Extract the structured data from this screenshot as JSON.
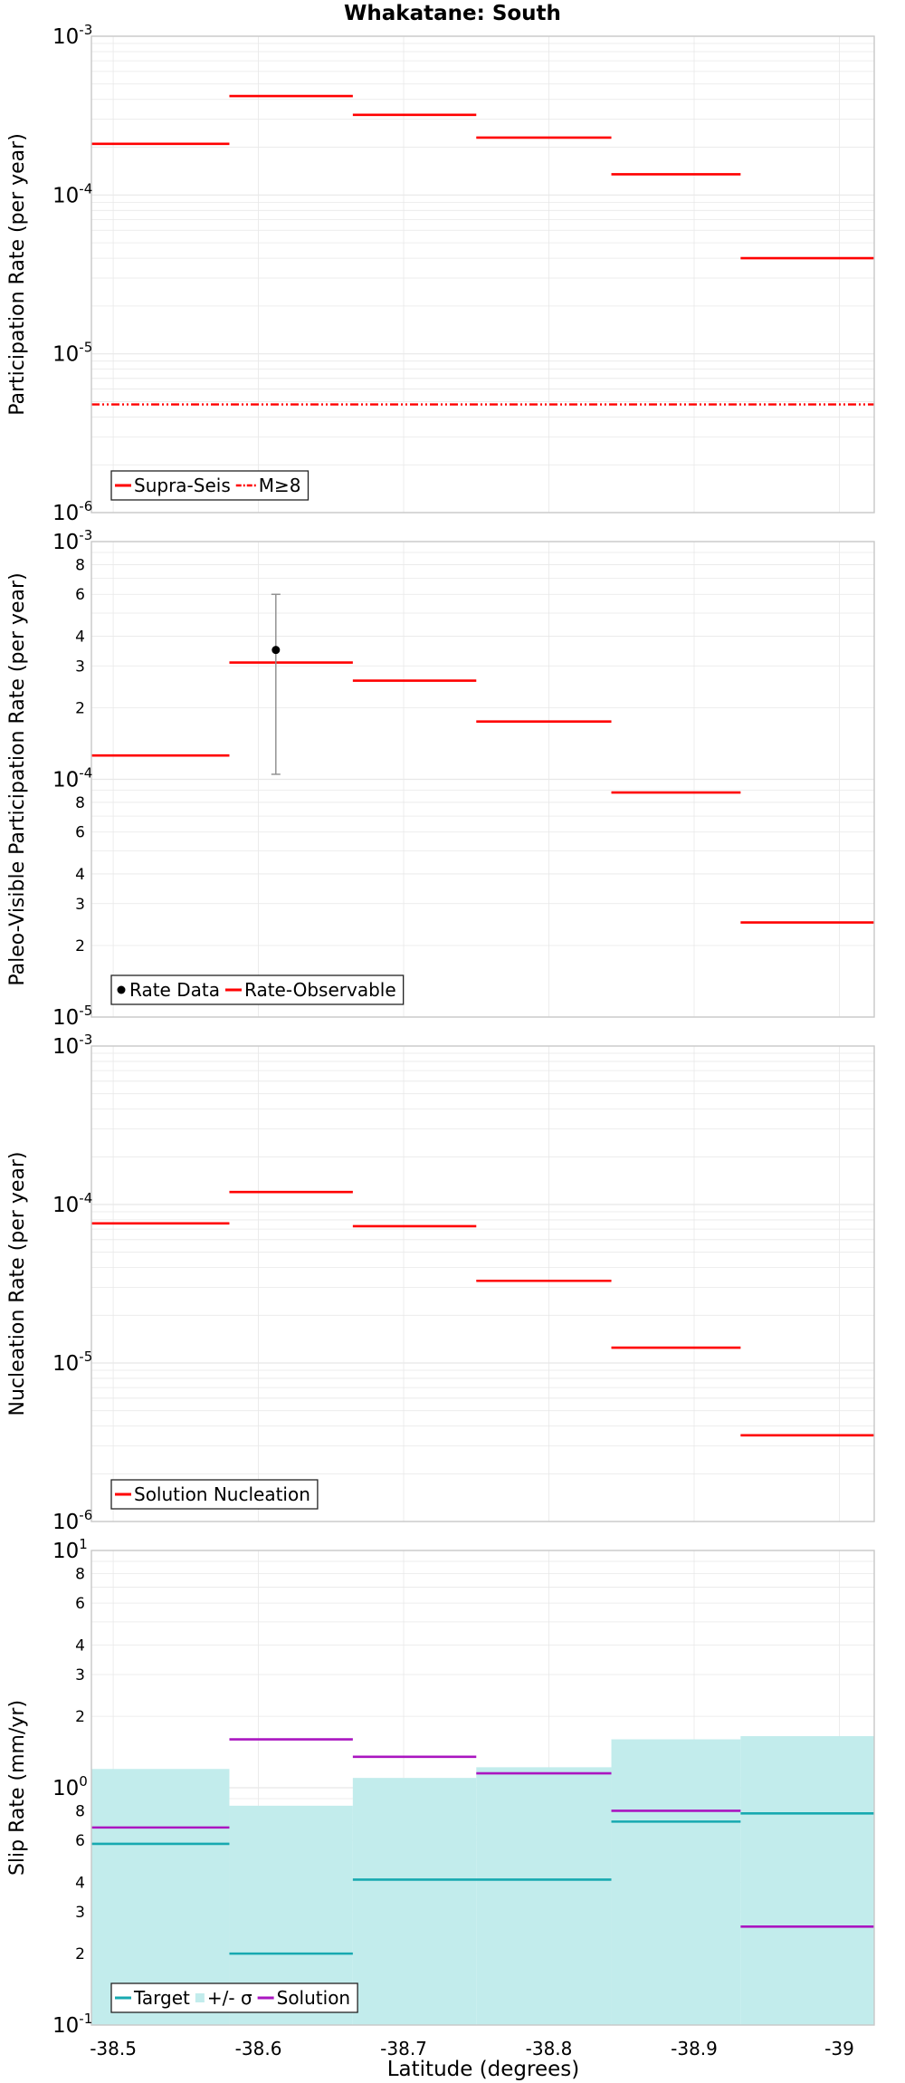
{
  "title": "Whakatane: South",
  "xlabel": "Latitude (degrees)",
  "colors": {
    "red": "#ff0000",
    "black": "#000000",
    "teal": "#17a9b0",
    "teal_band": "#c2ecec",
    "purple": "#aa16c0",
    "errorbar": "#8c8c8c",
    "grid": "#e8e8e8",
    "frame": "#c8c8c8"
  },
  "chart_data": [
    {
      "type": "line",
      "title": "Whakatane: South",
      "ylabel": "Participation Rate (per year)",
      "xlabel": "",
      "yscale": "log",
      "xlim": [
        -38.485,
        -39.024
      ],
      "ylim": [
        1e-06,
        0.001
      ],
      "yticks": [
        {
          "value": 1e-06,
          "base": "10",
          "exp": "-6"
        },
        {
          "value": 1e-05,
          "base": "10",
          "exp": "-5"
        },
        {
          "value": 0.0001,
          "base": "10",
          "exp": "-4"
        },
        {
          "value": 0.001,
          "base": "10",
          "exp": "-3"
        }
      ],
      "grid": true,
      "legend": "bottom-left",
      "legend_entries": [
        {
          "label": "Supra-Seis",
          "style": "line",
          "color": "#ff0000"
        },
        {
          "label": "M≥8",
          "style": "dashdot",
          "color": "#ff0000"
        }
      ],
      "series": [
        {
          "name": "Supra-Seis",
          "style": "step",
          "color": "#ff0000",
          "segments": [
            {
              "x0": -38.485,
              "x1": -38.58,
              "y": 0.00021
            },
            {
              "x0": -38.58,
              "x1": -38.665,
              "y": 0.00042
            },
            {
              "x0": -38.665,
              "x1": -38.75,
              "y": 0.00032
            },
            {
              "x0": -38.75,
              "x1": -38.843,
              "y": 0.00023
            },
            {
              "x0": -38.843,
              "x1": -38.932,
              "y": 0.000135
            },
            {
              "x0": -38.932,
              "x1": -39.024,
              "y": 4e-05
            }
          ]
        },
        {
          "name": "M≥8",
          "style": "dashdot",
          "color": "#ff0000",
          "segments": [
            {
              "x0": -38.485,
              "x1": -39.024,
              "y": 4.8e-06
            }
          ]
        }
      ]
    },
    {
      "type": "line",
      "title": "",
      "ylabel": "Paleo-Visible Participation Rate (per year)",
      "xlabel": "",
      "yscale": "log",
      "xlim": [
        -38.485,
        -39.024
      ],
      "ylim": [
        1e-05,
        0.001
      ],
      "yticks": [
        {
          "value": 1e-05,
          "base": "10",
          "exp": "-5"
        },
        {
          "value": 2e-05,
          "base": "2",
          "exp": ""
        },
        {
          "value": 3e-05,
          "base": "3",
          "exp": ""
        },
        {
          "value": 4e-05,
          "base": "4",
          "exp": ""
        },
        {
          "value": 6e-05,
          "base": "6",
          "exp": ""
        },
        {
          "value": 8e-05,
          "base": "8",
          "exp": ""
        },
        {
          "value": 0.0001,
          "base": "10",
          "exp": "-4"
        },
        {
          "value": 0.0002,
          "base": "2",
          "exp": ""
        },
        {
          "value": 0.0003,
          "base": "3",
          "exp": ""
        },
        {
          "value": 0.0004,
          "base": "4",
          "exp": ""
        },
        {
          "value": 0.0006,
          "base": "6",
          "exp": ""
        },
        {
          "value": 0.0008,
          "base": "8",
          "exp": ""
        },
        {
          "value": 0.001,
          "base": "10",
          "exp": "-3"
        }
      ],
      "grid": true,
      "legend": "bottom-left",
      "legend_entries": [
        {
          "label": "Rate Data",
          "style": "point",
          "color": "#000000"
        },
        {
          "label": "Rate-Observable",
          "style": "line",
          "color": "#ff0000"
        }
      ],
      "series": [
        {
          "name": "Rate-Observable",
          "style": "step",
          "color": "#ff0000",
          "segments": [
            {
              "x0": -38.485,
              "x1": -38.58,
              "y": 0.000126
            },
            {
              "x0": -38.58,
              "x1": -38.665,
              "y": 0.00031
            },
            {
              "x0": -38.665,
              "x1": -38.75,
              "y": 0.00026
            },
            {
              "x0": -38.75,
              "x1": -38.843,
              "y": 0.000175
            },
            {
              "x0": -38.843,
              "x1": -38.932,
              "y": 8.8e-05
            },
            {
              "x0": -38.932,
              "x1": -39.024,
              "y": 2.5e-05
            }
          ]
        },
        {
          "name": "Rate Data",
          "style": "points",
          "color": "#000000",
          "points": [
            {
              "x": -38.612,
              "y": 0.00035,
              "ylow": 0.000105,
              "yhigh": 0.0006
            }
          ]
        }
      ]
    },
    {
      "type": "line",
      "title": "",
      "ylabel": "Nucleation Rate (per year)",
      "xlabel": "",
      "yscale": "log",
      "xlim": [
        -38.485,
        -39.024
      ],
      "ylim": [
        1e-06,
        0.001
      ],
      "yticks": [
        {
          "value": 1e-06,
          "base": "10",
          "exp": "-6"
        },
        {
          "value": 1e-05,
          "base": "10",
          "exp": "-5"
        },
        {
          "value": 0.0001,
          "base": "10",
          "exp": "-4"
        },
        {
          "value": 0.001,
          "base": "10",
          "exp": "-3"
        }
      ],
      "grid": true,
      "legend": "bottom-left",
      "legend_entries": [
        {
          "label": "Solution Nucleation",
          "style": "line",
          "color": "#ff0000"
        }
      ],
      "series": [
        {
          "name": "Solution Nucleation",
          "style": "step",
          "color": "#ff0000",
          "segments": [
            {
              "x0": -38.485,
              "x1": -38.58,
              "y": 7.6e-05
            },
            {
              "x0": -38.58,
              "x1": -38.665,
              "y": 0.00012
            },
            {
              "x0": -38.665,
              "x1": -38.75,
              "y": 7.3e-05
            },
            {
              "x0": -38.75,
              "x1": -38.843,
              "y": 3.3e-05
            },
            {
              "x0": -38.843,
              "x1": -38.932,
              "y": 1.25e-05
            },
            {
              "x0": -38.932,
              "x1": -39.024,
              "y": 3.5e-06
            }
          ]
        }
      ]
    },
    {
      "type": "area",
      "title": "",
      "ylabel": "Slip Rate (mm/yr)",
      "xlabel": "Latitude (degrees)",
      "yscale": "log",
      "xlim": [
        -38.485,
        -39.024
      ],
      "ylim": [
        0.1,
        10
      ],
      "xticks": [
        {
          "value": -38.5,
          "label": "-38.5"
        },
        {
          "value": -38.6,
          "label": "-38.6"
        },
        {
          "value": -38.7,
          "label": "-38.7"
        },
        {
          "value": -38.8,
          "label": "-38.8"
        },
        {
          "value": -38.9,
          "label": "-38.9"
        },
        {
          "value": -39.0,
          "label": "-39"
        }
      ],
      "yticks": [
        {
          "value": 0.1,
          "base": "10",
          "exp": "-1"
        },
        {
          "value": 0.2,
          "base": "2",
          "exp": ""
        },
        {
          "value": 0.3,
          "base": "3",
          "exp": ""
        },
        {
          "value": 0.4,
          "base": "4",
          "exp": ""
        },
        {
          "value": 0.6,
          "base": "6",
          "exp": ""
        },
        {
          "value": 0.8,
          "base": "8",
          "exp": ""
        },
        {
          "value": 1,
          "base": "10",
          "exp": "0"
        },
        {
          "value": 2,
          "base": "2",
          "exp": ""
        },
        {
          "value": 3,
          "base": "3",
          "exp": ""
        },
        {
          "value": 4,
          "base": "4",
          "exp": ""
        },
        {
          "value": 6,
          "base": "6",
          "exp": ""
        },
        {
          "value": 8,
          "base": "8",
          "exp": ""
        },
        {
          "value": 10,
          "base": "10",
          "exp": "1"
        }
      ],
      "grid": true,
      "legend": "bottom-left",
      "legend_entries": [
        {
          "label": "Target",
          "style": "line",
          "color": "#17a9b0"
        },
        {
          "label": "+/- σ",
          "style": "band",
          "color": "#c2ecec"
        },
        {
          "label": "Solution",
          "style": "line",
          "color": "#aa16c0"
        }
      ],
      "series": [
        {
          "name": "+/- σ",
          "style": "band",
          "color": "#c2ecec",
          "segments": [
            {
              "x0": -38.485,
              "x1": -38.58,
              "y": 1.2
            },
            {
              "x0": -38.58,
              "x1": -38.665,
              "y": 0.84
            },
            {
              "x0": -38.665,
              "x1": -38.75,
              "y": 1.1
            },
            {
              "x0": -38.75,
              "x1": -38.843,
              "y": 1.22
            },
            {
              "x0": -38.843,
              "x1": -38.932,
              "y": 1.6
            },
            {
              "x0": -38.932,
              "x1": -39.024,
              "y": 1.65
            }
          ]
        },
        {
          "name": "Target",
          "style": "step",
          "color": "#17a9b0",
          "segments": [
            {
              "x0": -38.485,
              "x1": -38.58,
              "y": 0.58
            },
            {
              "x0": -38.58,
              "x1": -38.665,
              "y": 0.2
            },
            {
              "x0": -38.665,
              "x1": -38.843,
              "y": 0.41
            },
            {
              "x0": -38.843,
              "x1": -38.932,
              "y": 0.72
            },
            {
              "x0": -38.932,
              "x1": -39.024,
              "y": 0.78
            }
          ]
        },
        {
          "name": "Solution",
          "style": "step",
          "color": "#aa16c0",
          "segments": [
            {
              "x0": -38.485,
              "x1": -38.58,
              "y": 0.68
            },
            {
              "x0": -38.58,
              "x1": -38.665,
              "y": 1.6
            },
            {
              "x0": -38.665,
              "x1": -38.75,
              "y": 1.35
            },
            {
              "x0": -38.75,
              "x1": -38.843,
              "y": 1.15
            },
            {
              "x0": -38.843,
              "x1": -38.932,
              "y": 0.8
            },
            {
              "x0": -38.932,
              "x1": -39.024,
              "y": 0.26
            }
          ]
        }
      ]
    }
  ]
}
